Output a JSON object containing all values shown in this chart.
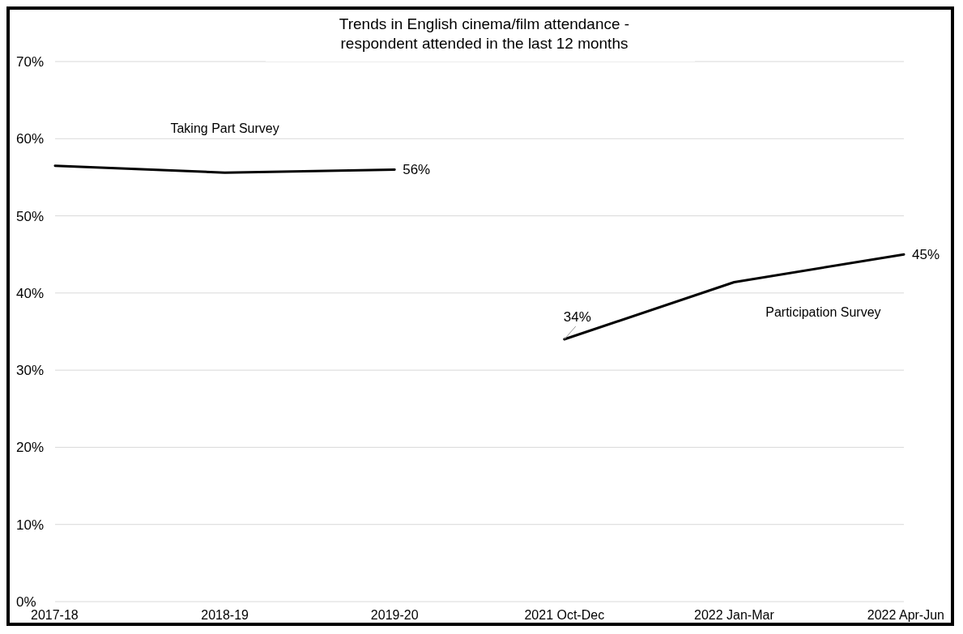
{
  "chart_data": {
    "type": "line",
    "title": "Trends in English cinema/film attendance -\nrespondent attended in the last 12 months",
    "categories": [
      "2017-18",
      "2018-19",
      "2019-20",
      "2021 Oct-Dec",
      "2022 Jan-Mar",
      "2022 Apr-Jun"
    ],
    "series": [
      {
        "name": "Taking Part Survey",
        "color": "#000000",
        "values": [
          56.5,
          55.6,
          56,
          null,
          null,
          null
        ],
        "value_labels": [
          null,
          null,
          "56%",
          null,
          null,
          null
        ]
      },
      {
        "name": "Participation Survey",
        "color": "#000000",
        "values": [
          null,
          null,
          null,
          34,
          41.4,
          45
        ],
        "value_labels": [
          null,
          null,
          null,
          "34%",
          null,
          "45%"
        ]
      }
    ],
    "ylim": [
      0,
      70
    ],
    "yticks": [
      {
        "value": 0,
        "label": "0%"
      },
      {
        "value": 10,
        "label": "10%"
      },
      {
        "value": 20,
        "label": "20%"
      },
      {
        "value": 30,
        "label": "30%"
      },
      {
        "value": 40,
        "label": "40%"
      },
      {
        "value": 50,
        "label": "50%"
      },
      {
        "value": 60,
        "label": "60%"
      },
      {
        "value": 70,
        "label": "70%"
      }
    ],
    "grid": "y",
    "marker": "none",
    "line_style": "solid"
  }
}
